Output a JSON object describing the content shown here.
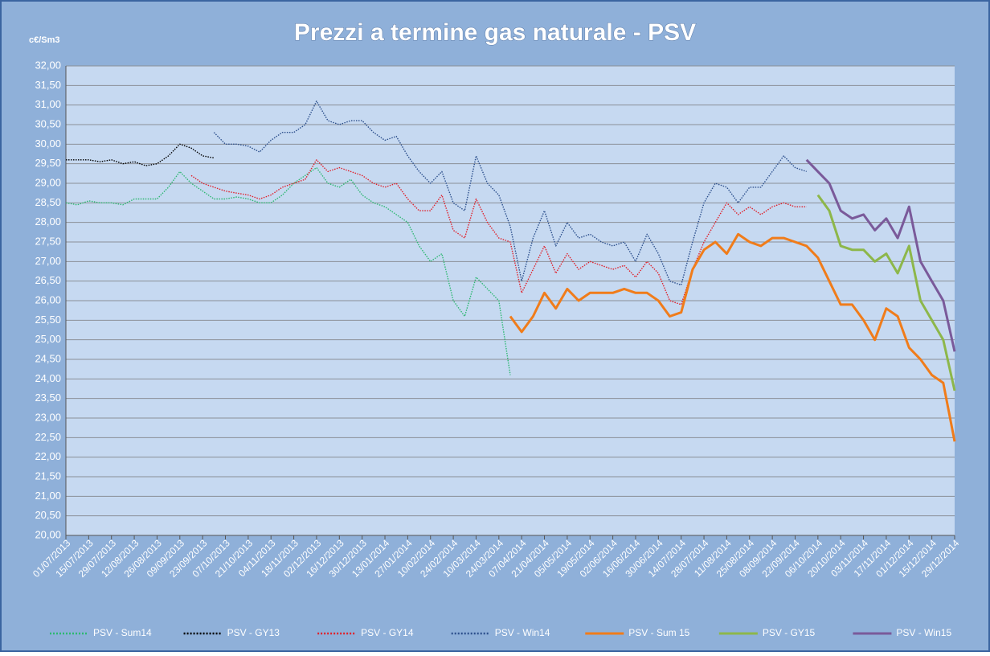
{
  "chart_data": {
    "type": "line",
    "title": "Prezzi a termine gas naturale - PSV",
    "ylabel": "c€/Sm3",
    "x": [
      "01/07/2013",
      "08/07/2013",
      "15/07/2013",
      "22/07/2013",
      "29/07/2013",
      "05/08/2013",
      "12/08/2013",
      "19/08/2013",
      "26/08/2013",
      "02/09/2013",
      "09/09/2013",
      "16/09/2013",
      "23/09/2013",
      "30/09/2013",
      "07/10/2013",
      "14/10/2013",
      "21/10/2013",
      "28/10/2013",
      "04/11/2013",
      "11/11/2013",
      "18/11/2013",
      "25/11/2013",
      "02/12/2013",
      "09/12/2013",
      "16/12/2013",
      "23/12/2013",
      "30/12/2013",
      "06/01/2014",
      "13/01/2014",
      "20/01/2014",
      "27/01/2014",
      "03/02/2014",
      "10/02/2014",
      "17/02/2014",
      "24/02/2014",
      "03/03/2014",
      "10/03/2014",
      "17/03/2014",
      "24/03/2014",
      "31/03/2014",
      "07/04/2014",
      "14/04/2014",
      "21/04/2014",
      "28/04/2014",
      "05/05/2014",
      "12/05/2014",
      "19/05/2014",
      "26/05/2014",
      "02/06/2014",
      "09/06/2014",
      "16/06/2014",
      "23/06/2014",
      "30/06/2014",
      "07/07/2014",
      "14/07/2014",
      "21/07/2014",
      "28/07/2014",
      "04/08/2014",
      "11/08/2014",
      "18/08/2014",
      "25/08/2014",
      "01/09/2014",
      "08/09/2014",
      "15/09/2014",
      "22/09/2014",
      "29/09/2014",
      "06/10/2014",
      "13/10/2014",
      "20/10/2014",
      "27/10/2014",
      "03/11/2014",
      "10/11/2014",
      "17/11/2014",
      "24/11/2014",
      "01/12/2014",
      "08/12/2014",
      "15/12/2014",
      "22/12/2014",
      "29/12/2014"
    ],
    "series": [
      {
        "name": "PSV - Sum14",
        "color": "#2eb872",
        "style": "dotted",
        "values": [
          28.5,
          28.45,
          28.55,
          28.5,
          28.5,
          28.45,
          28.6,
          28.6,
          28.6,
          28.9,
          29.3,
          29.0,
          28.8,
          28.6,
          28.6,
          28.65,
          28.6,
          28.5,
          28.5,
          28.7,
          29.0,
          29.2,
          29.4,
          29.0,
          28.9,
          29.1,
          28.7,
          28.5,
          28.4,
          28.2,
          28.0,
          27.4,
          27.0,
          27.2,
          26.0,
          25.6,
          26.6,
          26.3,
          26.0,
          24.1,
          null,
          null,
          null,
          null,
          null,
          null,
          null,
          null,
          null,
          null,
          null,
          null,
          null,
          null,
          null,
          null,
          null,
          null,
          null,
          null,
          null,
          null,
          null,
          null,
          null,
          null,
          null,
          null,
          null,
          null,
          null,
          null,
          null,
          null,
          null,
          null,
          null,
          null,
          null
        ]
      },
      {
        "name": "PSV - GY13",
        "color": "#000000",
        "style": "dotted",
        "values": [
          29.6,
          29.6,
          29.6,
          29.55,
          29.6,
          29.5,
          29.55,
          29.45,
          29.5,
          29.7,
          30.0,
          29.9,
          29.7,
          29.65,
          null,
          null,
          null,
          null,
          null,
          null,
          null,
          null,
          null,
          null,
          null,
          null,
          null,
          null,
          null,
          null,
          null,
          null,
          null,
          null,
          null,
          null,
          null,
          null,
          null,
          null,
          null,
          null,
          null,
          null,
          null,
          null,
          null,
          null,
          null,
          null,
          null,
          null,
          null,
          null,
          null,
          null,
          null,
          null,
          null,
          null,
          null,
          null,
          null,
          null,
          null,
          null,
          null,
          null,
          null,
          null,
          null,
          null,
          null,
          null,
          null,
          null,
          null,
          null,
          null
        ]
      },
      {
        "name": "PSV - GY14",
        "color": "#e0202a",
        "style": "dotted",
        "values": [
          null,
          null,
          null,
          null,
          null,
          null,
          null,
          null,
          null,
          null,
          null,
          29.2,
          29.0,
          28.9,
          28.8,
          28.75,
          28.7,
          28.6,
          28.7,
          28.9,
          29.0,
          29.1,
          29.6,
          29.3,
          29.4,
          29.3,
          29.2,
          29.0,
          28.9,
          29.0,
          28.6,
          28.3,
          28.3,
          28.7,
          27.8,
          27.6,
          28.6,
          28.0,
          27.6,
          27.5,
          26.2,
          26.8,
          27.4,
          26.7,
          27.2,
          26.8,
          27.0,
          26.9,
          26.8,
          26.9,
          26.6,
          27.0,
          26.7,
          26.0,
          25.9,
          26.8,
          27.5,
          28.0,
          28.5,
          28.2,
          28.4,
          28.2,
          28.4,
          28.5,
          28.4,
          28.4,
          null,
          null,
          null,
          null,
          null,
          null,
          null,
          null,
          null,
          null,
          null,
          null,
          null
        ]
      },
      {
        "name": "PSV - Win14",
        "color": "#2c4f8c",
        "style": "dotted",
        "values": [
          null,
          null,
          null,
          null,
          null,
          null,
          null,
          null,
          null,
          null,
          null,
          null,
          null,
          30.3,
          30.0,
          30.0,
          29.95,
          29.8,
          30.1,
          30.3,
          30.3,
          30.5,
          31.1,
          30.6,
          30.5,
          30.6,
          30.6,
          30.3,
          30.1,
          30.2,
          29.7,
          29.3,
          29.0,
          29.3,
          28.5,
          28.3,
          29.7,
          29.0,
          28.7,
          27.9,
          26.5,
          27.6,
          28.3,
          27.4,
          28.0,
          27.6,
          27.7,
          27.5,
          27.4,
          27.5,
          27.0,
          27.7,
          27.2,
          26.5,
          26.4,
          27.5,
          28.5,
          29.0,
          28.9,
          28.5,
          28.9,
          28.9,
          29.3,
          29.7,
          29.4,
          29.3,
          null,
          null,
          null,
          null,
          null,
          null,
          null,
          null,
          null,
          null,
          null,
          null,
          null
        ]
      },
      {
        "name": "PSV - Sum 15",
        "color": "#f07c1a",
        "style": "solid",
        "values": [
          null,
          null,
          null,
          null,
          null,
          null,
          null,
          null,
          null,
          null,
          null,
          null,
          null,
          null,
          null,
          null,
          null,
          null,
          null,
          null,
          null,
          null,
          null,
          null,
          null,
          null,
          null,
          null,
          null,
          null,
          null,
          null,
          null,
          null,
          null,
          null,
          null,
          null,
          null,
          25.6,
          25.2,
          25.6,
          26.2,
          25.8,
          26.3,
          26.0,
          26.2,
          26.2,
          26.2,
          26.3,
          26.2,
          26.2,
          26.0,
          25.6,
          25.7,
          26.8,
          27.3,
          27.5,
          27.2,
          27.7,
          27.5,
          27.4,
          27.6,
          27.6,
          27.5,
          27.4,
          27.1,
          26.5,
          25.9,
          25.9,
          25.5,
          25.0,
          25.8,
          25.6,
          24.8,
          24.5,
          24.1,
          23.9,
          22.4
        ]
      },
      {
        "name": "PSV - GY15",
        "color": "#8db74a",
        "style": "solid",
        "values": [
          null,
          null,
          null,
          null,
          null,
          null,
          null,
          null,
          null,
          null,
          null,
          null,
          null,
          null,
          null,
          null,
          null,
          null,
          null,
          null,
          null,
          null,
          null,
          null,
          null,
          null,
          null,
          null,
          null,
          null,
          null,
          null,
          null,
          null,
          null,
          null,
          null,
          null,
          null,
          null,
          null,
          null,
          null,
          null,
          null,
          null,
          null,
          null,
          null,
          null,
          null,
          null,
          null,
          null,
          null,
          null,
          null,
          null,
          null,
          null,
          null,
          null,
          null,
          null,
          null,
          null,
          28.7,
          28.3,
          27.4,
          27.3,
          27.3,
          27.0,
          27.2,
          26.7,
          27.4,
          26.0,
          25.5,
          25.0,
          23.7
        ]
      },
      {
        "name": "PSV - Win15",
        "color": "#7a5a9a",
        "style": "solid",
        "values": [
          null,
          null,
          null,
          null,
          null,
          null,
          null,
          null,
          null,
          null,
          null,
          null,
          null,
          null,
          null,
          null,
          null,
          null,
          null,
          null,
          null,
          null,
          null,
          null,
          null,
          null,
          null,
          null,
          null,
          null,
          null,
          null,
          null,
          null,
          null,
          null,
          null,
          null,
          null,
          null,
          null,
          null,
          null,
          null,
          null,
          null,
          null,
          null,
          null,
          null,
          null,
          null,
          null,
          null,
          null,
          null,
          null,
          null,
          null,
          null,
          null,
          null,
          null,
          null,
          null,
          29.6,
          29.3,
          29.0,
          28.3,
          28.1,
          28.2,
          27.8,
          28.1,
          27.6,
          28.4,
          27.0,
          26.5,
          26.0,
          24.7
        ]
      }
    ],
    "xlim": [
      "01/07/2013",
      "29/12/2014"
    ],
    "xticks": [
      "01/07/2013",
      "15/07/2013",
      "29/07/2013",
      "12/08/2013",
      "26/08/2013",
      "09/09/2013",
      "23/09/2013",
      "07/10/2013",
      "21/10/2013",
      "04/11/2013",
      "18/11/2013",
      "02/12/2013",
      "16/12/2013",
      "30/12/2013",
      "13/01/2014",
      "27/01/2014",
      "10/02/2014",
      "24/02/2014",
      "10/03/2014",
      "24/03/2014",
      "07/04/2014",
      "21/04/2014",
      "05/05/2014",
      "19/05/2014",
      "02/06/2014",
      "16/06/2014",
      "30/06/2014",
      "14/07/2014",
      "28/07/2014",
      "11/08/2014",
      "25/08/2014",
      "08/09/2014",
      "22/09/2014",
      "06/10/2014",
      "20/10/2014",
      "03/11/2014",
      "17/11/2014",
      "01/12/2014",
      "15/12/2014",
      "29/12/2014"
    ],
    "ylim": [
      20,
      32
    ],
    "yticks": [
      {
        "value": 20,
        "label": "20,00"
      },
      {
        "value": 20.5,
        "label": "20,50"
      },
      {
        "value": 21,
        "label": "21,00"
      },
      {
        "value": 21.5,
        "label": "21,50"
      },
      {
        "value": 22,
        "label": "22,00"
      },
      {
        "value": 22.5,
        "label": "22,50"
      },
      {
        "value": 23,
        "label": "23,00"
      },
      {
        "value": 23.5,
        "label": "23,50"
      },
      {
        "value": 24,
        "label": "24,00"
      },
      {
        "value": 24.5,
        "label": "24,50"
      },
      {
        "value": 25,
        "label": "25,00"
      },
      {
        "value": 25.5,
        "label": "25,50"
      },
      {
        "value": 26,
        "label": "26,00"
      },
      {
        "value": 26.5,
        "label": "26,50"
      },
      {
        "value": 27,
        "label": "27,00"
      },
      {
        "value": 27.5,
        "label": "27,50"
      },
      {
        "value": 28,
        "label": "28,00"
      },
      {
        "value": 28.5,
        "label": "28,50"
      },
      {
        "value": 29,
        "label": "29,00"
      },
      {
        "value": 29.5,
        "label": "29,50"
      },
      {
        "value": 30,
        "label": "30,00"
      },
      {
        "value": 30.5,
        "label": "30,50"
      },
      {
        "value": 31,
        "label": "31,00"
      },
      {
        "value": 31.5,
        "label": "31,50"
      },
      {
        "value": 32,
        "label": "32,00"
      }
    ],
    "grid": true,
    "legend": "bottom"
  }
}
